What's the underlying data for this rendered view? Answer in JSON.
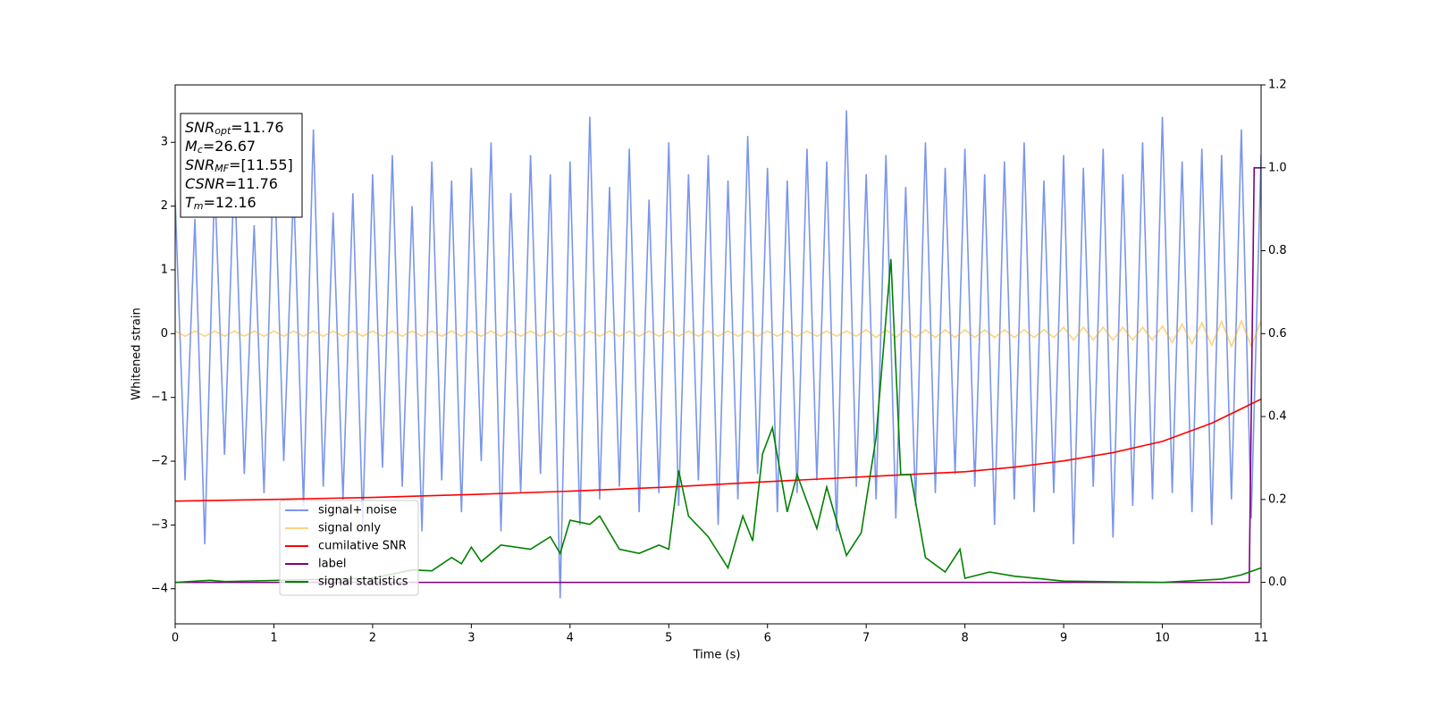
{
  "chart_data": {
    "type": "line",
    "xlabel": "Time (s)",
    "ylabel": "Whitened strain",
    "xlim": [
      0,
      11
    ],
    "xticks": [
      0,
      1,
      2,
      3,
      4,
      5,
      6,
      7,
      8,
      9,
      10,
      11
    ],
    "ylim": [
      -4.55,
      3.9
    ],
    "yticks": [
      {
        "value": -4,
        "label": "−4"
      },
      {
        "value": -3,
        "label": "−3"
      },
      {
        "value": -2,
        "label": "−2"
      },
      {
        "value": -1,
        "label": "−1"
      },
      0,
      1,
      2,
      3
    ],
    "y2lim": [
      -0.1,
      1.2
    ],
    "y2ticks": [
      {
        "value": 0,
        "label": "0.0"
      },
      0.2,
      0.4,
      0.6,
      0.8,
      {
        "value": 1,
        "label": "1.0"
      },
      1.2
    ],
    "legend_loc": "lower left",
    "annotations": [
      {
        "main": "SNR",
        "sub": "opt",
        "rest": "=11.76"
      },
      {
        "main": "M",
        "sub": "c",
        "rest": "=26.67"
      },
      {
        "main": "SNR",
        "sub": "MF",
        "rest": "=[11.55]"
      },
      {
        "main": "CSNR",
        "sub": "",
        "rest": "=11.76"
      },
      {
        "main": "T",
        "sub": "m",
        "rest": "=12.16"
      }
    ],
    "x": [
      0,
      0.1,
      0.2,
      0.3,
      0.4,
      0.5,
      0.6,
      0.7,
      0.8,
      0.9,
      1,
      1.1,
      1.2,
      1.3,
      1.4,
      1.5,
      1.6,
      1.7,
      1.8,
      1.9,
      2,
      2.1,
      2.2,
      2.3,
      2.4,
      2.5,
      2.6,
      2.7,
      2.8,
      2.9,
      3,
      3.1,
      3.2,
      3.3,
      3.4,
      3.5,
      3.6,
      3.7,
      3.8,
      3.9,
      4,
      4.1,
      4.2,
      4.3,
      4.4,
      4.5,
      4.6,
      4.7,
      4.8,
      4.9,
      5,
      5.1,
      5.2,
      5.3,
      5.4,
      5.5,
      5.6,
      5.7,
      5.8,
      5.9,
      6,
      6.1,
      6.2,
      6.3,
      6.4,
      6.5,
      6.6,
      6.7,
      6.8,
      6.9,
      7,
      7.1,
      7.2,
      7.3,
      7.4,
      7.5,
      7.6,
      7.7,
      7.8,
      7.9,
      8,
      8.1,
      8.2,
      8.3,
      8.4,
      8.5,
      8.6,
      8.7,
      8.8,
      8.9,
      9,
      9.1,
      9.2,
      9.3,
      9.4,
      9.5,
      9.6,
      9.7,
      9.8,
      9.9,
      10,
      10.1,
      10.2,
      10.3,
      10.4,
      10.5,
      10.6,
      10.7,
      10.8,
      10.9,
      11
    ],
    "series": [
      {
        "name": "signal+ noise",
        "color": "#4169e1",
        "alpha": 0.7,
        "axis": "y",
        "values": [
          2.1,
          -2.3,
          1.8,
          -3.3,
          2.4,
          -1.9,
          2.6,
          -2.2,
          1.7,
          -2.5,
          2.9,
          -2.0,
          2.3,
          -2.7,
          3.2,
          -2.4,
          1.9,
          -2.6,
          2.2,
          -3.0,
          2.5,
          -2.1,
          2.8,
          -2.4,
          2.0,
          -3.1,
          2.7,
          -2.3,
          2.4,
          -2.8,
          2.6,
          -2.0,
          3.0,
          -3.1,
          2.2,
          -2.5,
          2.8,
          -2.2,
          2.5,
          -4.15,
          2.7,
          -3.0,
          3.4,
          -2.6,
          2.3,
          -2.4,
          2.9,
          -2.8,
          2.1,
          -2.5,
          3.0,
          -2.7,
          2.5,
          -2.3,
          2.8,
          -3.0,
          2.4,
          -2.6,
          3.1,
          -2.2,
          2.6,
          -2.8,
          2.4,
          -2.5,
          2.9,
          -2.3,
          2.7,
          -3.1,
          3.5,
          -2.4,
          2.5,
          -2.6,
          2.8,
          -2.9,
          2.3,
          -2.7,
          3.0,
          -2.5,
          2.6,
          -2.2,
          2.9,
          -2.4,
          2.5,
          -3.0,
          2.7,
          -2.6,
          3.0,
          -2.8,
          2.4,
          -2.5,
          2.8,
          -3.3,
          2.6,
          -2.4,
          2.9,
          -3.2,
          2.5,
          -2.7,
          3.0,
          -2.6,
          3.4,
          -2.5,
          2.7,
          -2.8,
          2.9,
          -3.0,
          2.8,
          -2.6,
          3.2,
          -2.9,
          2.8
        ]
      },
      {
        "name": "signal only",
        "color": "#ffa500",
        "alpha": 0.5,
        "axis": "y",
        "values": [
          0.04,
          -0.04,
          0.04,
          -0.04,
          0.04,
          -0.04,
          0.04,
          -0.04,
          0.04,
          -0.04,
          0.04,
          -0.04,
          0.04,
          -0.04,
          0.04,
          -0.04,
          0.04,
          -0.04,
          0.04,
          -0.04,
          0.04,
          -0.04,
          0.04,
          -0.04,
          0.04,
          -0.04,
          0.04,
          -0.04,
          0.04,
          -0.04,
          0.04,
          -0.04,
          0.04,
          -0.04,
          0.04,
          -0.04,
          0.04,
          -0.04,
          0.04,
          -0.04,
          0.04,
          -0.04,
          0.04,
          -0.04,
          0.04,
          -0.04,
          0.04,
          -0.04,
          0.04,
          -0.04,
          0.04,
          -0.04,
          0.04,
          -0.04,
          0.04,
          -0.04,
          0.04,
          -0.04,
          0.04,
          -0.04,
          0.04,
          -0.04,
          0.04,
          -0.04,
          0.04,
          -0.04,
          0.04,
          -0.04,
          0.04,
          -0.04,
          0.06,
          -0.06,
          0.06,
          -0.06,
          0.06,
          -0.06,
          0.06,
          -0.06,
          0.06,
          -0.06,
          0.06,
          -0.06,
          0.06,
          -0.06,
          0.06,
          -0.06,
          0.06,
          -0.06,
          0.06,
          -0.06,
          0.1,
          -0.1,
          0.1,
          -0.1,
          0.1,
          -0.1,
          0.1,
          -0.1,
          0.1,
          -0.1,
          0.12,
          -0.14,
          0.15,
          -0.16,
          0.17,
          -0.18,
          0.19,
          -0.2,
          0.2,
          -0.2,
          0.2
        ]
      },
      {
        "name": "cumilative SNR",
        "color": "#ff0000",
        "alpha": 1,
        "axis": "y2",
        "x": [
          0,
          1,
          2,
          3,
          4,
          5,
          6,
          7,
          8,
          8.5,
          9,
          9.5,
          10,
          10.5,
          11
        ],
        "values": [
          0.196,
          0.2,
          0.205,
          0.212,
          0.22,
          0.23,
          0.243,
          0.255,
          0.267,
          0.278,
          0.293,
          0.313,
          0.34,
          0.384,
          0.442
        ]
      },
      {
        "name": "label",
        "color": "#800080",
        "alpha": 1,
        "axis": "y2",
        "x": [
          0,
          10.88,
          10.93,
          11
        ],
        "values": [
          0,
          0,
          1,
          1
        ]
      },
      {
        "name": "signal statistics",
        "color": "#008000",
        "alpha": 1,
        "axis": "y2",
        "x": [
          0,
          0.35,
          0.5,
          2,
          2.4,
          2.6,
          2.8,
          2.9,
          3,
          3.1,
          3.3,
          3.6,
          3.8,
          3.9,
          4,
          4.2,
          4.3,
          4.5,
          4.7,
          4.9,
          5,
          5.1,
          5.2,
          5.4,
          5.6,
          5.75,
          5.85,
          5.95,
          6.05,
          6.2,
          6.3,
          6.5,
          6.6,
          6.8,
          6.95,
          7.1,
          7.25,
          7.35,
          7.45,
          7.6,
          7.8,
          7.95,
          8,
          8.25,
          8.5,
          9,
          10,
          10.6,
          10.8,
          11
        ],
        "values": [
          0,
          0.005,
          0.002,
          0.01,
          0.03,
          0.028,
          0.06,
          0.045,
          0.085,
          0.05,
          0.09,
          0.08,
          0.11,
          0.07,
          0.15,
          0.14,
          0.16,
          0.08,
          0.07,
          0.09,
          0.08,
          0.27,
          0.16,
          0.11,
          0.035,
          0.16,
          0.1,
          0.31,
          0.373,
          0.17,
          0.26,
          0.13,
          0.23,
          0.065,
          0.12,
          0.35,
          0.78,
          0.26,
          0.26,
          0.06,
          0.025,
          0.08,
          0.01,
          0.025,
          0.015,
          0.003,
          0.0,
          0.008,
          0.018,
          0.035
        ]
      }
    ]
  }
}
